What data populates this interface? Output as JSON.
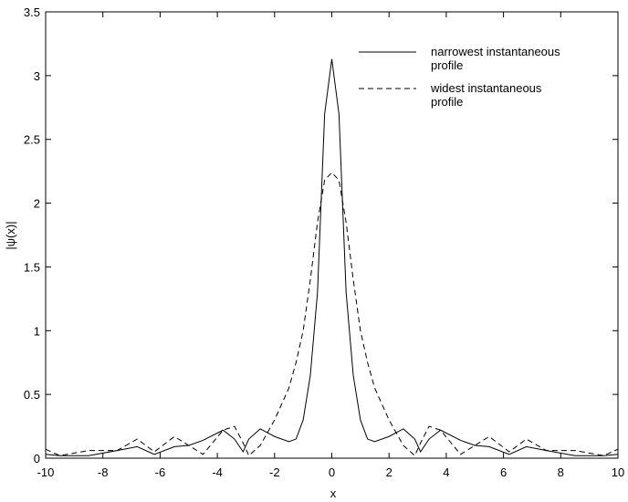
{
  "chart_data": {
    "type": "line",
    "xlabel": "x",
    "ylabel": "|ψ(x)|",
    "x": [
      -10,
      -9.5,
      -8.5,
      -7.5,
      -6.8,
      -6.2,
      -5.5,
      -5,
      -4.5,
      -3.8,
      -3.4,
      -3.1,
      -2.9,
      -2.5,
      -2,
      -1.5,
      -1.25,
      -1,
      -0.75,
      -0.5,
      -0.25,
      0,
      0.25,
      0.5,
      0.75,
      1,
      1.25,
      1.5,
      2,
      2.5,
      2.9,
      3.1,
      3.4,
      3.8,
      4.5,
      5,
      5.5,
      6.2,
      6.8,
      7.5,
      8.5,
      9.5,
      10
    ],
    "series": [
      {
        "name": "narrowest instantaneous profile",
        "color": "#000000",
        "dash": "solid",
        "values": [
          0.03,
          0.02,
          0.02,
          0.06,
          0.09,
          0.03,
          0.09,
          0.1,
          0.14,
          0.22,
          0.15,
          0.05,
          0.15,
          0.23,
          0.17,
          0.13,
          0.15,
          0.3,
          0.65,
          1.3,
          2.7,
          3.13,
          2.7,
          1.3,
          0.65,
          0.3,
          0.15,
          0.13,
          0.17,
          0.23,
          0.15,
          0.05,
          0.15,
          0.22,
          0.14,
          0.1,
          0.09,
          0.03,
          0.09,
          0.06,
          0.02,
          0.02,
          0.03
        ]
      },
      {
        "name": "widest instantaneous profile",
        "color": "#000000",
        "dash": "dashed",
        "values": [
          0.07,
          0.02,
          0.06,
          0.06,
          0.15,
          0.05,
          0.17,
          0.1,
          0.03,
          0.22,
          0.25,
          0.12,
          0.02,
          0.1,
          0.3,
          0.55,
          0.75,
          1.0,
          1.4,
          1.85,
          2.18,
          2.24,
          2.18,
          1.85,
          1.4,
          1.0,
          0.75,
          0.55,
          0.3,
          0.1,
          0.02,
          0.12,
          0.25,
          0.22,
          0.03,
          0.1,
          0.17,
          0.05,
          0.15,
          0.06,
          0.06,
          0.02,
          0.07
        ]
      }
    ],
    "xlim": [
      -10,
      10
    ],
    "xticks": [
      -10,
      -8,
      -6,
      -4,
      -2,
      0,
      2,
      4,
      6,
      8,
      10
    ],
    "ylim": [
      0,
      3.5
    ],
    "yticks": [
      0,
      0.5,
      1,
      1.5,
      2,
      2.5,
      3,
      3.5
    ],
    "grid": false,
    "legend": "upper right"
  }
}
